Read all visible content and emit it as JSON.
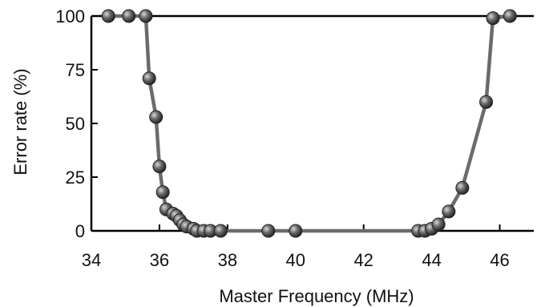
{
  "chart_data": {
    "type": "line",
    "title": "",
    "xlabel": "Master Frequency (MHz)",
    "ylabel": "Error rate (%)",
    "xlim": [
      34,
      47
    ],
    "ylim": [
      0,
      100
    ],
    "x_ticks": [
      "34",
      "36",
      "38",
      "40",
      "42",
      "44",
      "46"
    ],
    "y_ticks": [
      "0",
      "25",
      "50",
      "75",
      "100"
    ],
    "grid": false,
    "legend": "none",
    "series": [
      {
        "color": "#6b6b6b",
        "marker_color": "#3a3a3a",
        "points": [
          {
            "x": 34.5,
            "y": 100
          },
          {
            "x": 35.1,
            "y": 100
          },
          {
            "x": 35.6,
            "y": 100
          },
          {
            "x": 35.7,
            "y": 71
          },
          {
            "x": 35.9,
            "y": 53
          },
          {
            "x": 36.0,
            "y": 30
          },
          {
            "x": 36.1,
            "y": 18
          },
          {
            "x": 36.2,
            "y": 10
          },
          {
            "x": 36.4,
            "y": 8
          },
          {
            "x": 36.5,
            "y": 7
          },
          {
            "x": 36.6,
            "y": 5
          },
          {
            "x": 36.7,
            "y": 3
          },
          {
            "x": 36.8,
            "y": 2
          },
          {
            "x": 37.0,
            "y": 1
          },
          {
            "x": 37.1,
            "y": 0
          },
          {
            "x": 37.3,
            "y": 0
          },
          {
            "x": 37.5,
            "y": 0
          },
          {
            "x": 37.8,
            "y": 0
          },
          {
            "x": 39.2,
            "y": 0
          },
          {
            "x": 40.0,
            "y": 0
          },
          {
            "x": 43.6,
            "y": 0
          },
          {
            "x": 43.8,
            "y": 0
          },
          {
            "x": 44.0,
            "y": 1
          },
          {
            "x": 44.2,
            "y": 3
          },
          {
            "x": 44.5,
            "y": 9
          },
          {
            "x": 44.9,
            "y": 20
          },
          {
            "x": 45.6,
            "y": 60
          },
          {
            "x": 45.8,
            "y": 99
          },
          {
            "x": 46.3,
            "y": 100
          }
        ]
      }
    ]
  }
}
